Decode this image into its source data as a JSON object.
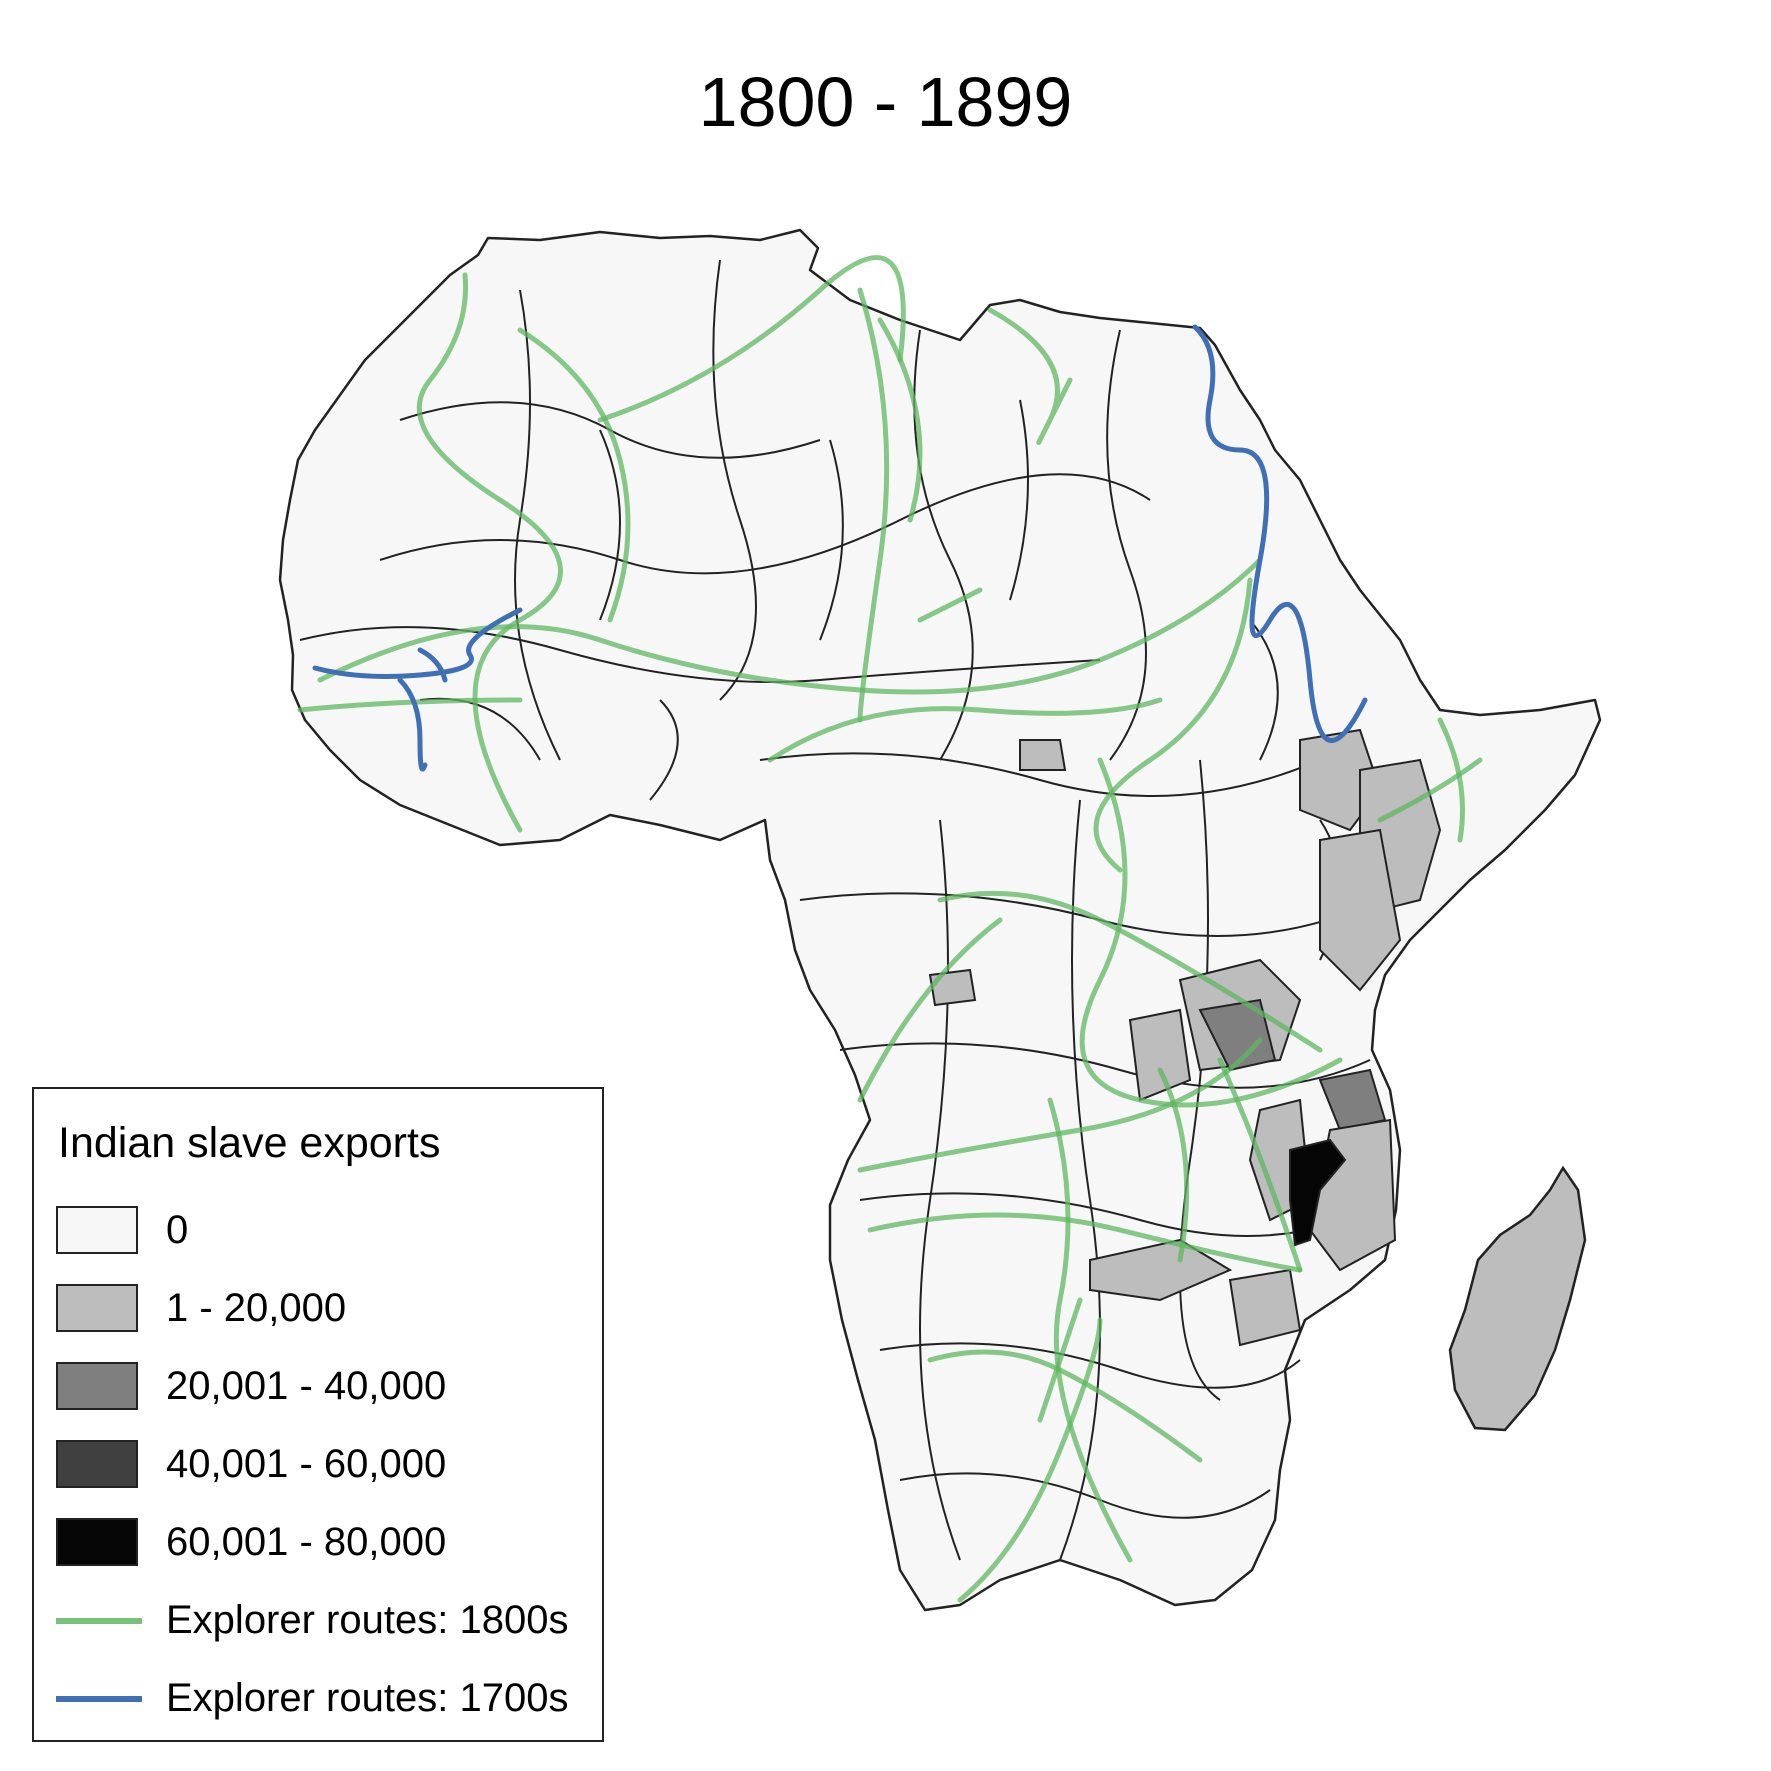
{
  "map": {
    "title": "1800 - 1899",
    "region": "Africa",
    "colors": {
      "background": "#ffffff",
      "border": "#222222",
      "green_route": "#5fb760",
      "blue_route": "#3f6fb5"
    }
  },
  "legend": {
    "title": "Indian slave exports",
    "classes": [
      {
        "label": "0",
        "color": "#f7f7f7"
      },
      {
        "label": "1 - 20,000",
        "color": "#bdbdbd"
      },
      {
        "label": "20,001 - 40,000",
        "color": "#7f7f7f"
      },
      {
        "label": "40,001 - 60,000",
        "color": "#404040"
      },
      {
        "label": "60,001 - 80,000",
        "color": "#050505"
      }
    ],
    "routes": [
      {
        "label": "Explorer routes: 1800s",
        "color": "#5fb760"
      },
      {
        "label": "Explorer routes: 1700s",
        "color": "#3f6fb5"
      }
    ]
  }
}
